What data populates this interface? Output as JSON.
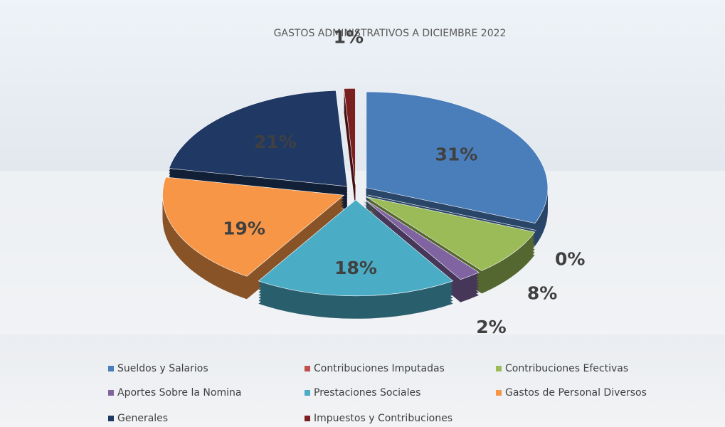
{
  "chart_data": {
    "type": "pie3d",
    "title": "GASTOS ADMINISTRATIVOS A DICIEMBRE 2022",
    "categories": [
      "Sueldos y Salarios",
      "Contribuciones Imputadas",
      "Contribuciones Efectivas",
      "Aportes Sobre la Nomina",
      "Prestaciones Sociales",
      "Gastos de Personal Diversos",
      "Generales",
      "Impuestos y Contribuciones"
    ],
    "values": [
      31,
      0,
      8,
      2,
      18,
      19,
      21,
      1
    ],
    "value_labels": [
      "31%",
      "0%",
      "8%",
      "2%",
      "18%",
      "19%",
      "21%",
      "1%"
    ],
    "colors": [
      "#4a7ebb",
      "#c0504d",
      "#9bbb59",
      "#8064a2",
      "#4bacc6",
      "#f79646",
      "#1f3864",
      "#7b2020"
    ],
    "legend": "bottom"
  }
}
